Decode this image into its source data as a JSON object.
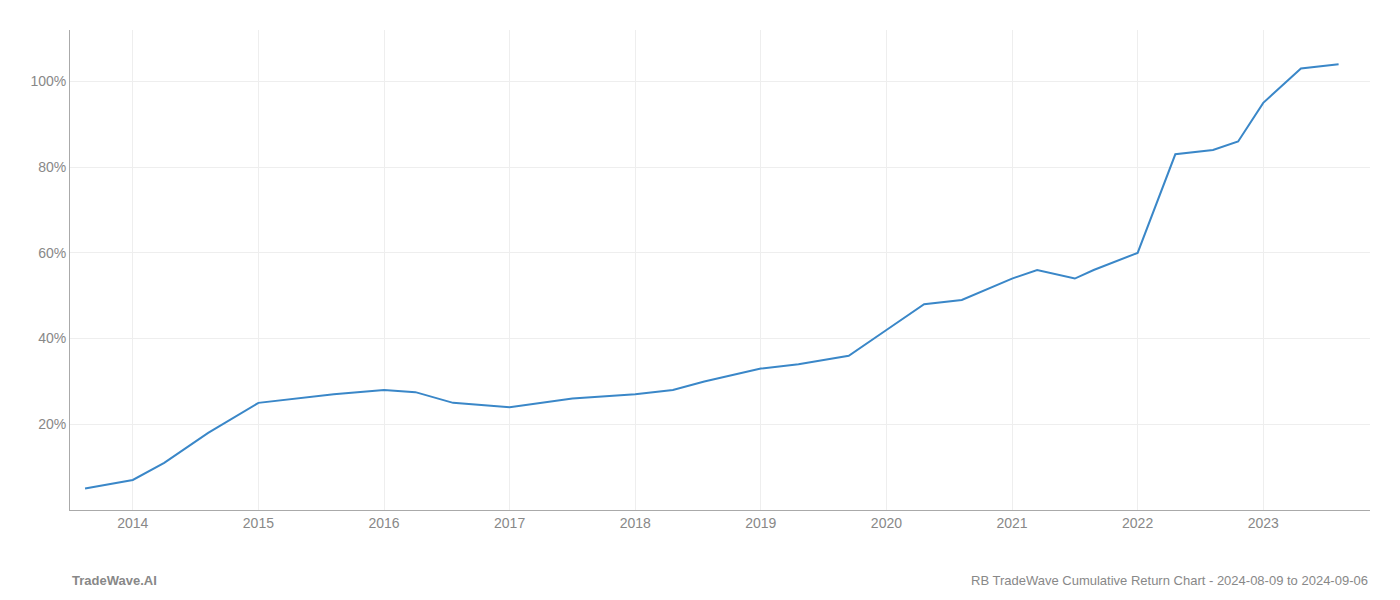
{
  "chart_data": {
    "type": "line",
    "x": [
      2013.62,
      2014.0,
      2014.25,
      2014.6,
      2015.0,
      2015.3,
      2015.6,
      2016.0,
      2016.25,
      2016.55,
      2017.0,
      2017.5,
      2018.0,
      2018.3,
      2018.55,
      2019.0,
      2019.3,
      2019.5,
      2019.7,
      2020.0,
      2020.3,
      2020.6,
      2021.0,
      2021.2,
      2021.5,
      2021.65,
      2022.0,
      2022.3,
      2022.6,
      2022.8,
      2023.0,
      2023.3,
      2023.6
    ],
    "values": [
      5,
      7,
      11,
      18,
      25,
      26,
      27,
      28,
      27.5,
      25,
      24,
      26,
      27,
      28,
      30,
      33,
      34,
      35,
      36,
      42,
      48,
      49,
      54,
      56,
      54,
      56,
      60,
      83,
      84,
      86,
      95,
      103,
      104
    ],
    "color": "#3a87c8",
    "xlim": [
      2013.5,
      2023.85
    ],
    "xticks": [
      2014,
      2015,
      2016,
      2017,
      2018,
      2019,
      2020,
      2021,
      2022,
      2023
    ],
    "ylim": [
      0,
      112
    ],
    "yticks": [
      {
        "value": 20,
        "label": "20%"
      },
      {
        "value": 40,
        "label": "40%"
      },
      {
        "value": 60,
        "label": "60%"
      },
      {
        "value": 80,
        "label": "80%"
      },
      {
        "value": 100,
        "label": "100%"
      }
    ],
    "grid": true,
    "annotations": [
      "TradeWave.AI",
      "RB TradeWave Cumulative Return Chart - 2024-08-09 to 2024-09-06"
    ]
  }
}
